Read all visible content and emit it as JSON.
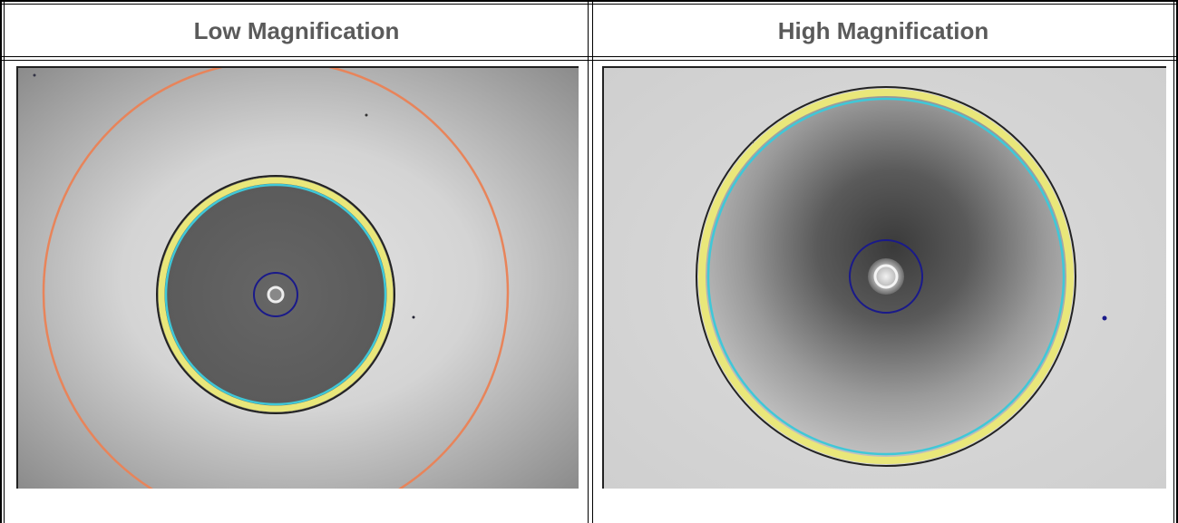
{
  "table": {
    "columns": [
      {
        "header": "Low Magnification",
        "image_icon": "low-magnification-fiber-endface-image"
      },
      {
        "header": "High Magnification",
        "image_icon": "high-magnification-fiber-endface-image"
      }
    ]
  },
  "colors": {
    "border": "#000000",
    "header_text": "#5a5a5a",
    "orange_ring": "#e8845a",
    "yellow_ring": "#e9e77a",
    "cyan_ring": "#3fc8d8",
    "navy_ring": "#1a1a8a",
    "black_ring": "#222222"
  }
}
